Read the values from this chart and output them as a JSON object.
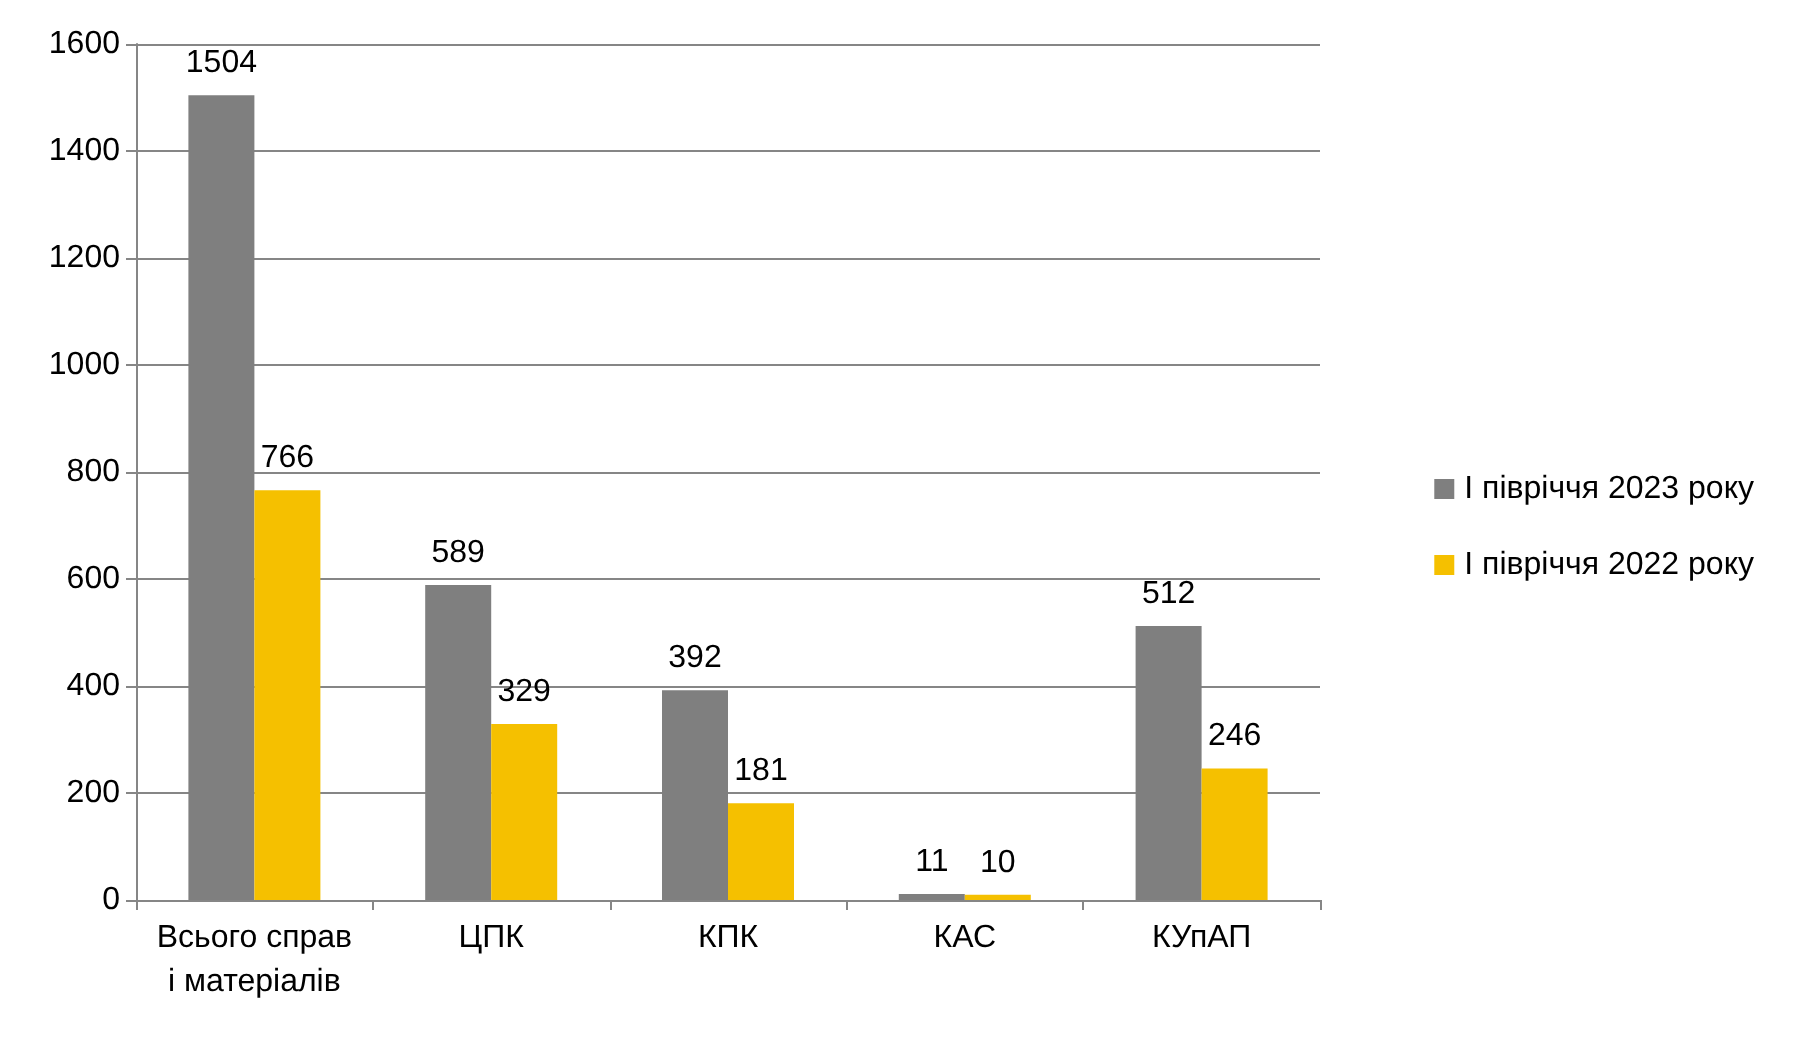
{
  "chart_data": {
    "type": "bar",
    "categories": [
      "Всього справ і матеріалів",
      "ЦПК",
      "КПК",
      "КАС",
      "КУпАП"
    ],
    "series": [
      {
        "name": "І півріччя 2023 року",
        "color": "#7f7f7f",
        "values": [
          1504,
          589,
          392,
          11,
          512
        ]
      },
      {
        "name": "І півріччя 2022 року",
        "color": "#f5c000",
        "values": [
          766,
          329,
          181,
          10,
          246
        ]
      }
    ],
    "ylim": [
      0,
      1600
    ],
    "yticks": [
      0,
      200,
      400,
      600,
      800,
      1000,
      1200,
      1400,
      1600
    ],
    "grid": "y",
    "legend": "right",
    "data_labels": true
  }
}
